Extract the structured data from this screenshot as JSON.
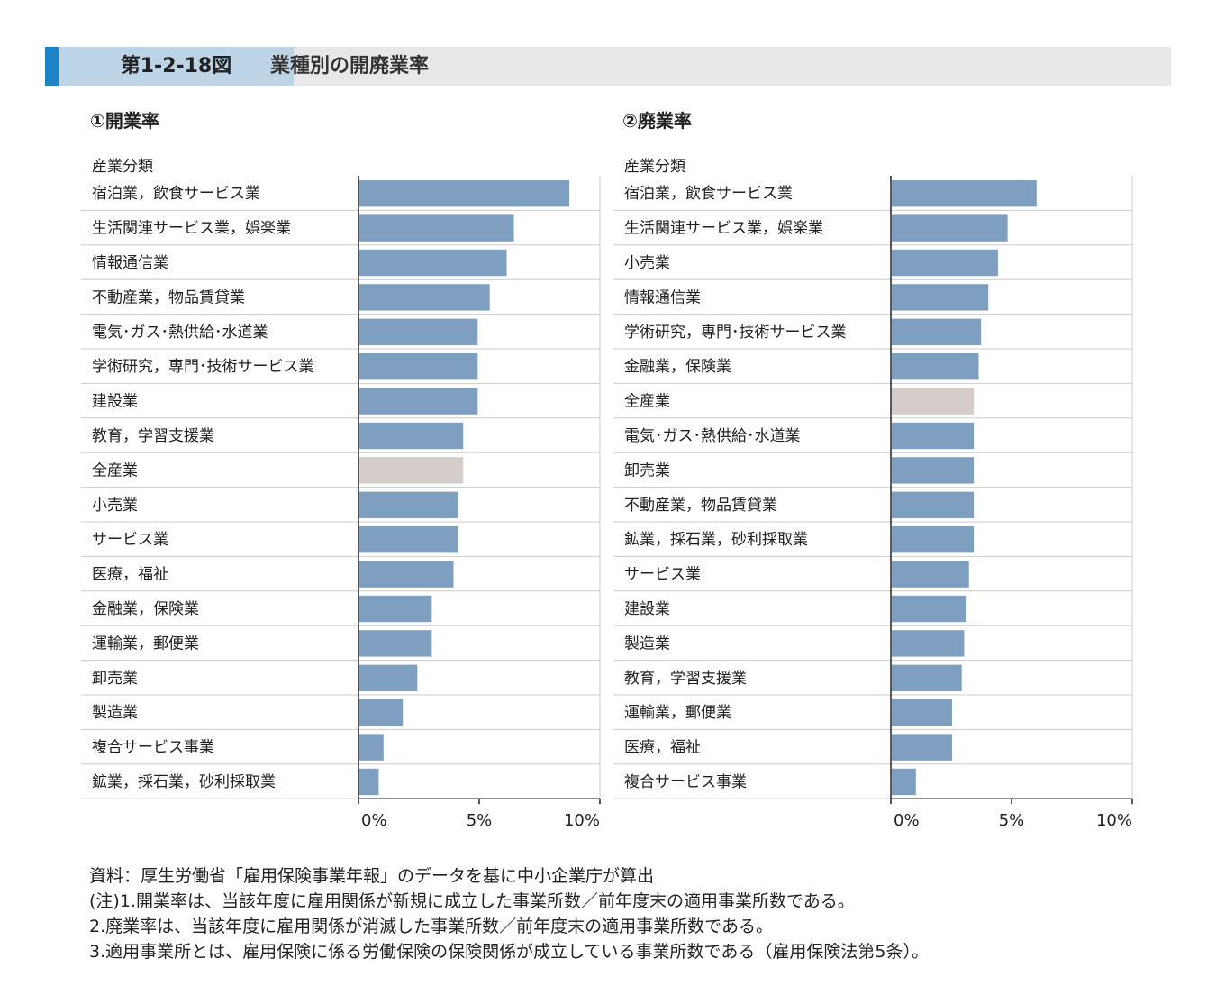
{
  "header": {
    "figure_number": "第1-2-18図",
    "title": "業種別の開廃業率"
  },
  "colors": {
    "bar": "#7f9fc1",
    "highlight_bar": "#d5cdc9",
    "header_accent": "#1f82c4",
    "header_label_bg": "#bdd3e6",
    "header_bg": "#e8e8ea"
  },
  "chart_data": [
    {
      "type": "bar",
      "orientation": "horizontal",
      "title": "①開業率",
      "ylabel": "産業分類",
      "xlim": [
        0,
        10
      ],
      "x_ticks": [
        "0%",
        "5%",
        "10%"
      ],
      "highlight": "全産業",
      "categories": [
        "宿泊業，飲食サービス業",
        "生活関連サービス業，娯楽業",
        "情報通信業",
        "不動産業，物品賃貸業",
        "電気･ガス･熱供給･水道業",
        "学術研究，専門･技術サービス業",
        "建設業",
        "教育，学習支援業",
        "全産業",
        "小売業",
        "サービス業",
        "医療，福祉",
        "金融業，保険業",
        "運輸業，郵便業",
        "卸売業",
        "製造業",
        "複合サービス事業",
        "鉱業，採石業，砂利採取業"
      ],
      "values": [
        8.7,
        6.4,
        6.1,
        5.4,
        4.9,
        4.9,
        4.9,
        4.3,
        4.3,
        4.1,
        4.1,
        3.9,
        3.0,
        3.0,
        2.4,
        1.8,
        1.0,
        0.8
      ]
    },
    {
      "type": "bar",
      "orientation": "horizontal",
      "title": "②廃業率",
      "ylabel": "産業分類",
      "xlim": [
        0,
        10
      ],
      "x_ticks": [
        "0%",
        "5%",
        "10%"
      ],
      "highlight": "全産業",
      "categories": [
        "宿泊業，飲食サービス業",
        "生活関連サービス業，娯楽業",
        "小売業",
        "情報通信業",
        "学術研究，専門･技術サービス業",
        "金融業，保険業",
        "全産業",
        "電気･ガス･熱供給･水道業",
        "卸売業",
        "不動産業，物品賃貸業",
        "鉱業，採石業，砂利採取業",
        "サービス業",
        "建設業",
        "製造業",
        "教育，学習支援業",
        "運輸業，郵便業",
        "医療，福祉",
        "複合サービス事業"
      ],
      "values": [
        6.0,
        4.8,
        4.4,
        4.0,
        3.7,
        3.6,
        3.4,
        3.4,
        3.4,
        3.4,
        3.4,
        3.2,
        3.1,
        3.0,
        2.9,
        2.5,
        2.5,
        1.0
      ]
    }
  ],
  "notes": [
    "資料：厚生労働省「雇用保険事業年報」のデータを基に中小企業庁が算出",
    "(注)1.開業率は、当該年度に雇用関係が新規に成立した事業所数／前年度末の適用事業所数である。",
    "2.廃業率は、当該年度に雇用関係が消滅した事業所数／前年度末の適用事業所数である。",
    "3.適用事業所とは、雇用保険に係る労働保険の保険関係が成立している事業所数である（雇用保険法第5条）。"
  ]
}
